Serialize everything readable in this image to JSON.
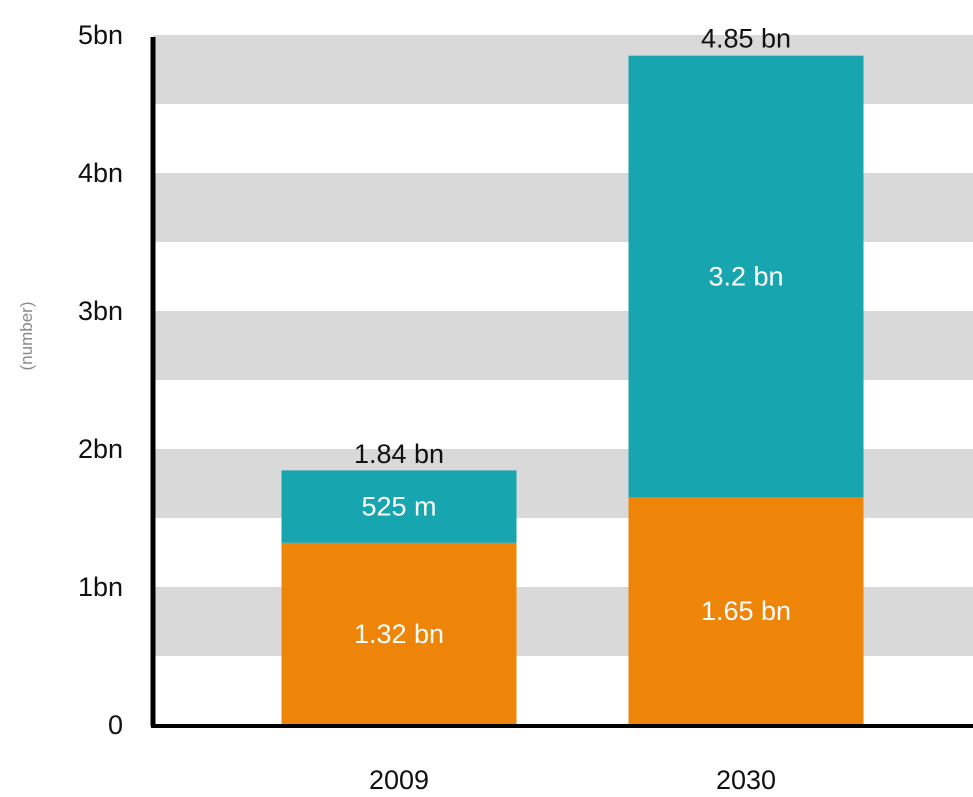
{
  "chart_data": {
    "type": "bar",
    "stacked": true,
    "title": "",
    "xlabel": "",
    "ylabel": "(number)",
    "ylim": [
      0,
      5000000000
    ],
    "yticks": [
      {
        "value": 0,
        "label": "0"
      },
      {
        "value": 1000000000,
        "label": "1bn"
      },
      {
        "value": 2000000000,
        "label": "2bn"
      },
      {
        "value": 3000000000,
        "label": "3bn"
      },
      {
        "value": 4000000000,
        "label": "4bn"
      },
      {
        "value": 5000000000,
        "label": "5bn"
      }
    ],
    "grid": "alternating horizontal bands",
    "legend": "none",
    "categories": [
      "2009",
      "2030"
    ],
    "series": [
      {
        "values": [
          1320000000,
          1650000000
        ],
        "labels": [
          "1.32 bn",
          "1.65 bn"
        ],
        "color": "#EE8509"
      },
      {
        "values": [
          525000000,
          3200000000
        ],
        "labels": [
          "525 m",
          "3.2 bn"
        ],
        "color": "#17A5B0"
      }
    ],
    "totals": {
      "values": [
        1840000000,
        4850000000
      ],
      "labels": [
        "1.84 bn",
        "4.85 bn"
      ]
    },
    "band_color": "#D9D9D9",
    "axis_color": "#000000"
  }
}
